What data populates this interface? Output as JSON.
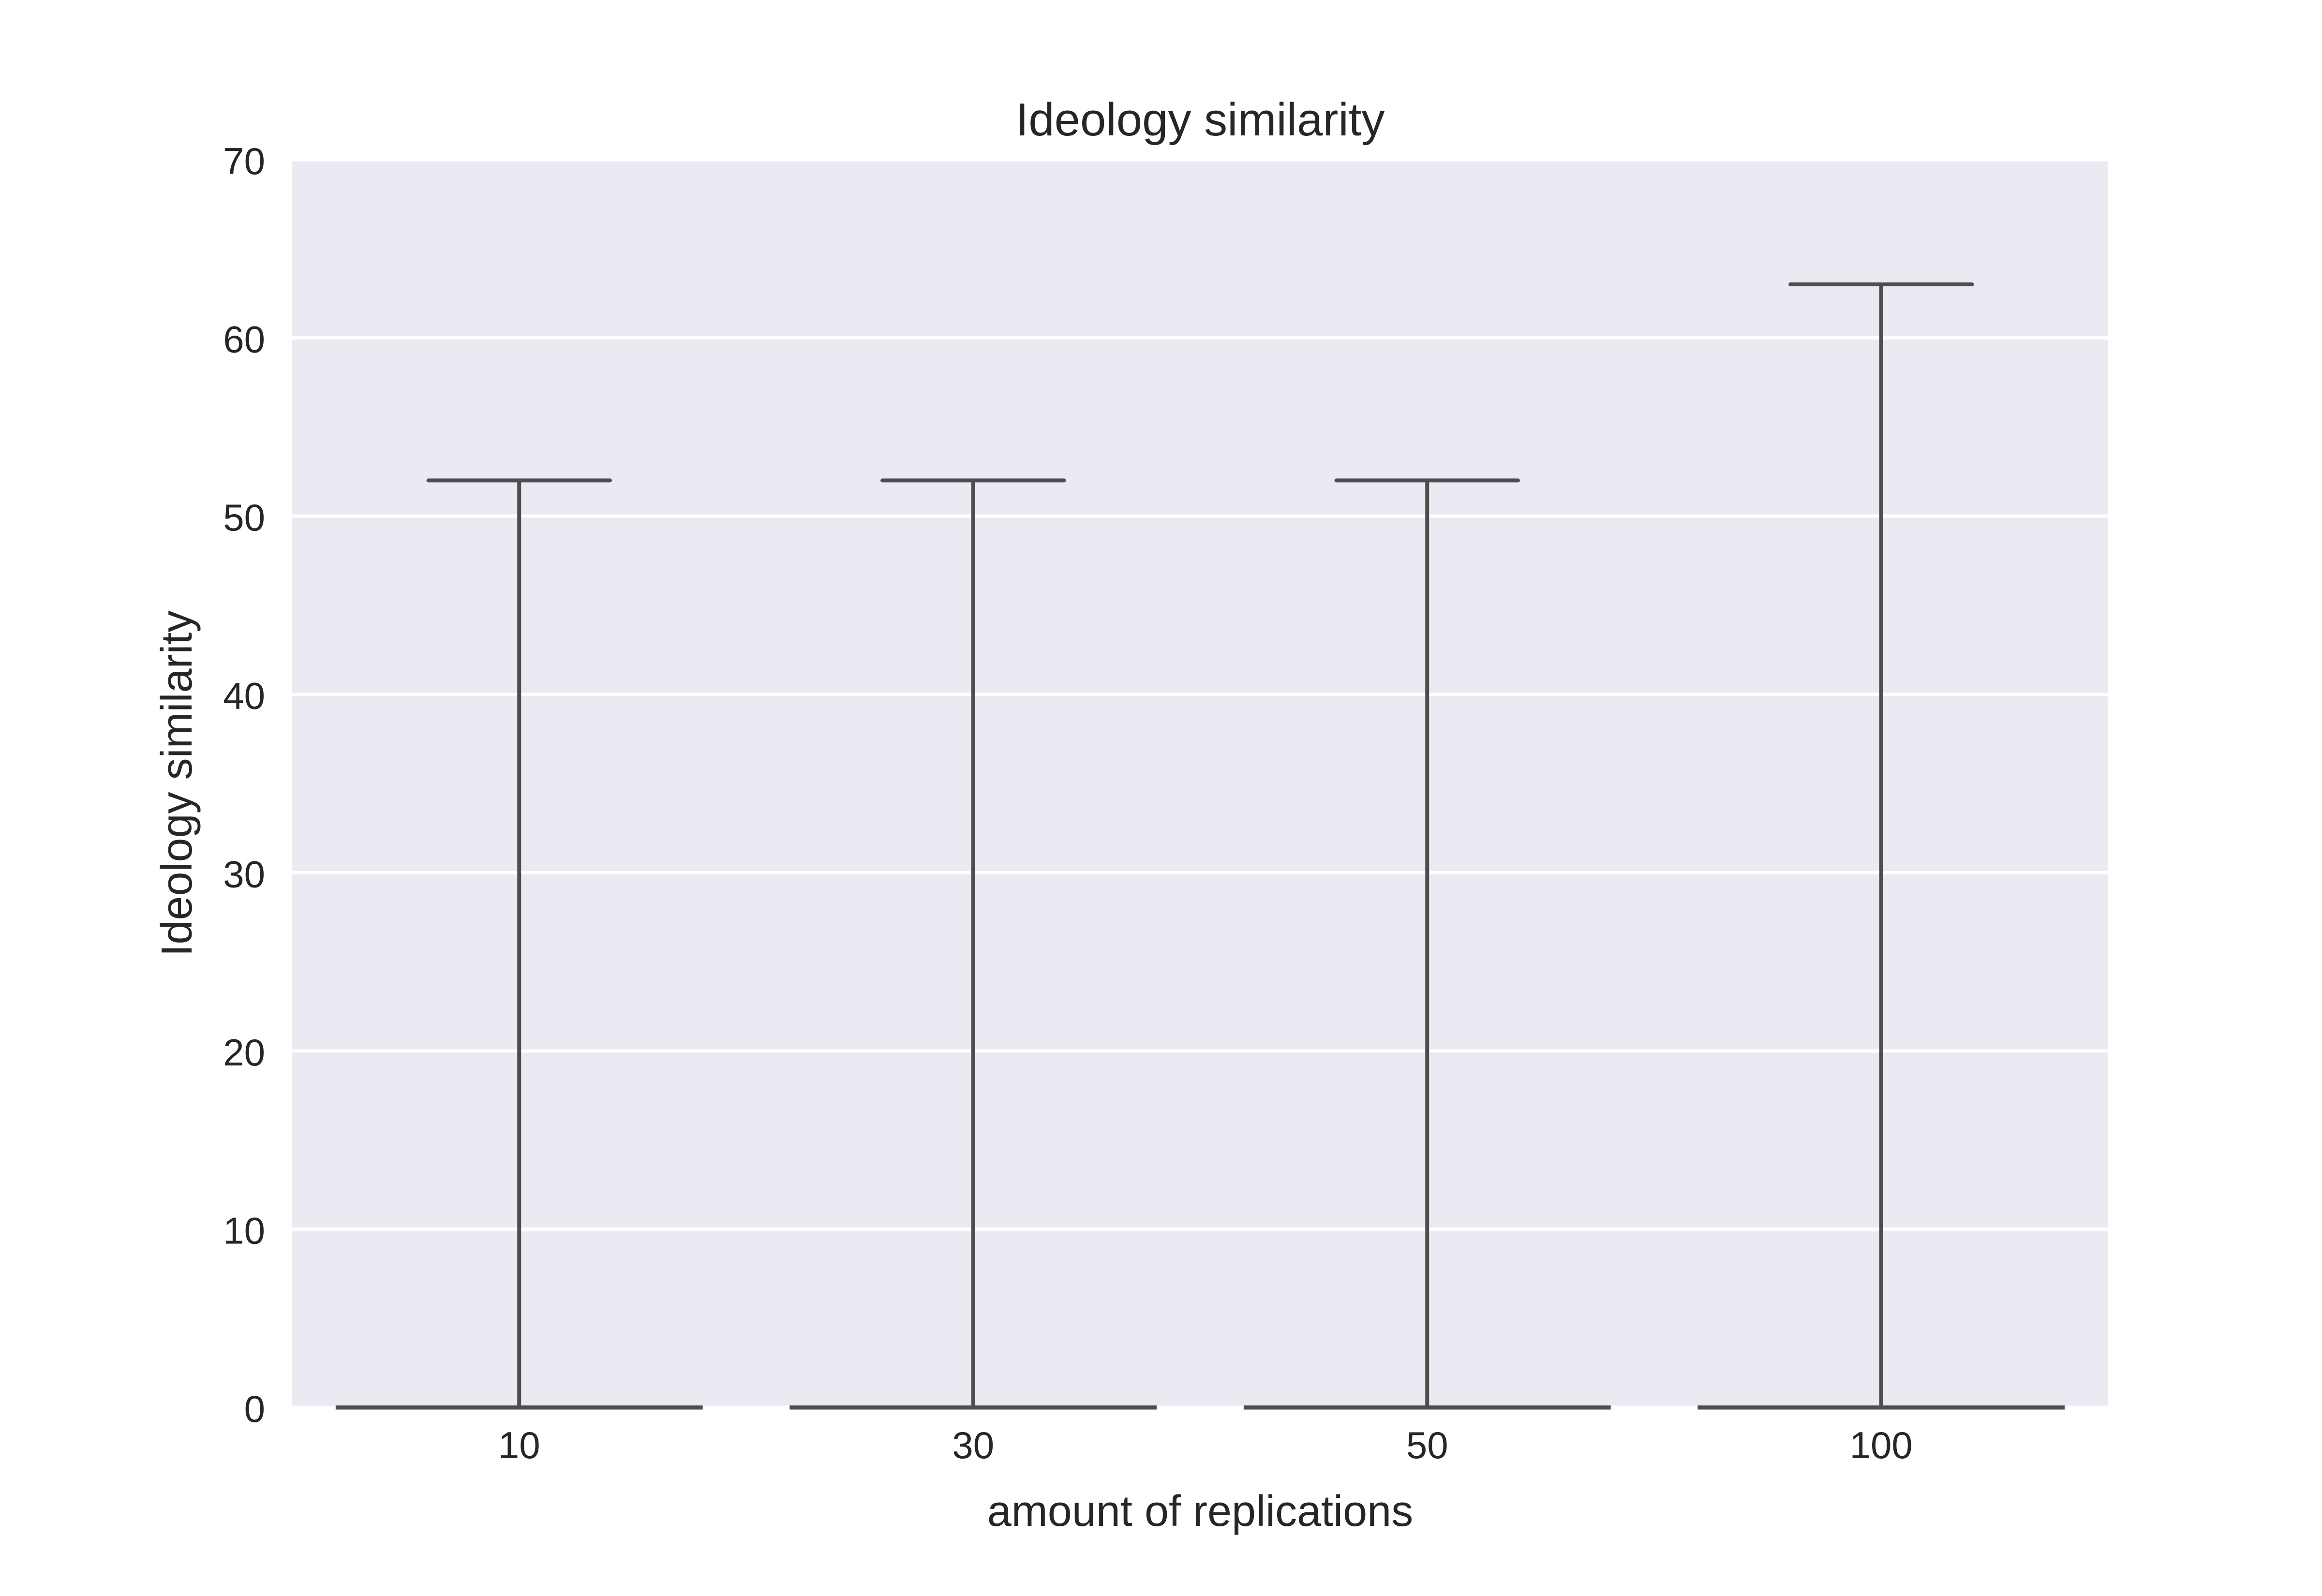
{
  "chart_data": {
    "type": "box",
    "title": "Ideology similarity",
    "xlabel": "amount of replications",
    "ylabel": "Ideology similarity",
    "categories": [
      "10",
      "30",
      "50",
      "100"
    ],
    "boxes": [
      {
        "category": "10",
        "min": 0,
        "q1": 0,
        "median": 0,
        "q3": 0,
        "max": 52
      },
      {
        "category": "30",
        "min": 0,
        "q1": 0,
        "median": 0,
        "q3": 0,
        "max": 52
      },
      {
        "category": "50",
        "min": 0,
        "q1": 0,
        "median": 0,
        "q3": 0,
        "max": 52
      },
      {
        "category": "100",
        "min": 0,
        "q1": 0,
        "median": 0,
        "q3": 0,
        "max": 63
      }
    ],
    "ylim": [
      0,
      70
    ],
    "yticks": [
      0,
      10,
      20,
      30,
      40,
      50,
      60,
      70
    ],
    "grid": true,
    "legend": "none",
    "colors": {
      "background": "#eaeaf2",
      "grid": "#ffffff",
      "line": "#4d4d4d",
      "text": "#262626"
    }
  }
}
